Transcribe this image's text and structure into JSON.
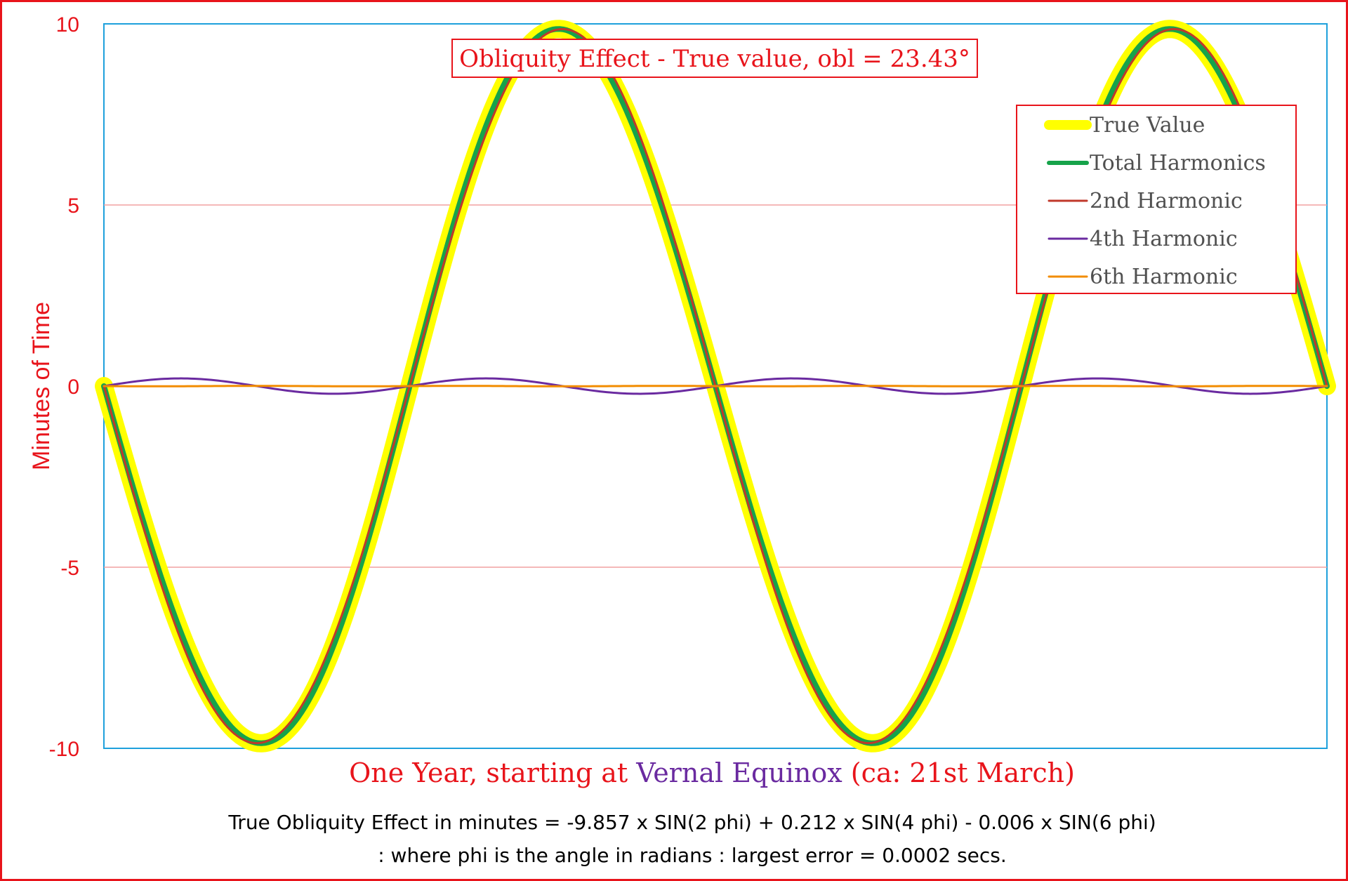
{
  "chart_data": {
    "type": "line",
    "title": "Obliquity Effect - True value, obl = 23.43°",
    "ylabel": "Minutes of Time",
    "ylim": [
      -10,
      10
    ],
    "yticks": [
      "10",
      "5",
      "0",
      "-5",
      "-10"
    ],
    "xlabel_parts": [
      {
        "text": "One Year, starting at ",
        "color": "#e8141b"
      },
      {
        "text": "Vernal Equinox",
        "color": "#6a2aa0"
      },
      {
        "text": " (ca: 21st March)",
        "color": "#e8141b"
      }
    ],
    "x_range_cycles": [
      0,
      1
    ],
    "grid": {
      "horizontal": true,
      "color": "#f2a0a0"
    },
    "legend_position": "top-right",
    "series": [
      {
        "name": "True Value",
        "color": "#ffff00",
        "formula": {
          "a2": -9.857,
          "a4": 0.212,
          "a6": -0.006
        }
      },
      {
        "name": "Total Harmonics",
        "color": "#16a34a",
        "formula": {
          "a2": -9.857,
          "a4": 0.212,
          "a6": -0.006
        }
      },
      {
        "name": "2nd Harmonic",
        "color": "#c0392b",
        "formula": {
          "a2": -9.857,
          "a4": 0,
          "a6": 0
        }
      },
      {
        "name": "4th Harmonic",
        "color": "#6a2aa0",
        "formula": {
          "a2": 0,
          "a4": 0.212,
          "a6": 0
        }
      },
      {
        "name": "6th Harmonic",
        "color": "#f28c00",
        "formula": {
          "a2": 0,
          "a4": 0,
          "a6": -0.006
        }
      }
    ],
    "samples_per_year": 365,
    "footnote_line1": "True Obliquity Effect in minutes = -9.857 x SIN(2 phi) + 0.212 x SIN(4 phi) - 0.006 x SIN(6 phi)",
    "footnote_line2": ": where phi is the angle in radians : largest error = 0.0002 secs."
  }
}
